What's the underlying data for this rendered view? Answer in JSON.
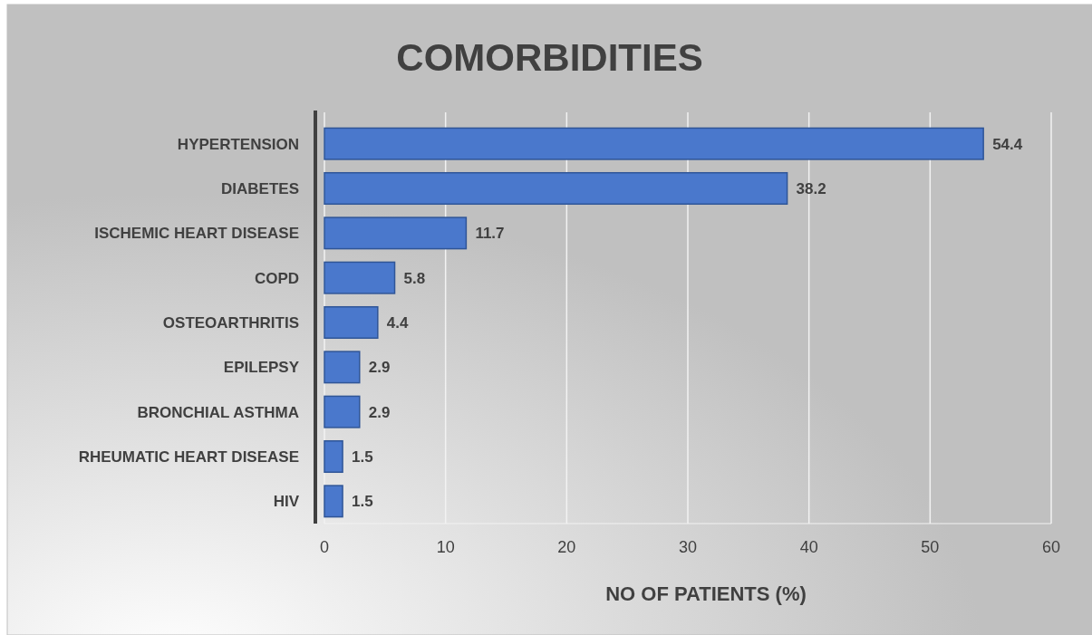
{
  "chart_data": {
    "type": "bar",
    "orientation": "horizontal",
    "title": "COMORBIDITIES",
    "xlabel": "NO OF PATIENTS (%)",
    "categories": [
      "HYPERTENSION",
      "DIABETES",
      "ISCHEMIC HEART DISEASE",
      "COPD",
      "OSTEOARTHRITIS",
      "EPILEPSY",
      "BRONCHIAL ASTHMA",
      "RHEUMATIC HEART DISEASE",
      "HIV"
    ],
    "values": [
      54.4,
      38.2,
      11.7,
      5.8,
      4.4,
      2.9,
      2.9,
      1.5,
      1.5
    ],
    "color": "#4a78cc",
    "xlim": [
      0,
      60
    ],
    "xticks": [
      0,
      10,
      20,
      30,
      40,
      50,
      60
    ],
    "grid": "x",
    "data_labels": true
  }
}
